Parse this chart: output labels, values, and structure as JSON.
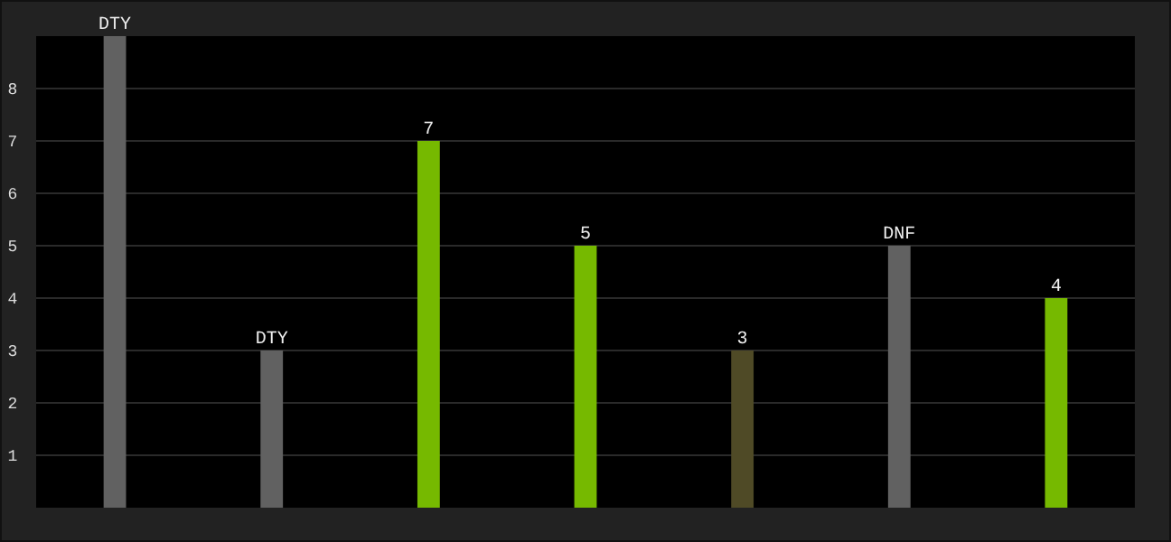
{
  "chart_data": {
    "type": "bar",
    "categories": [
      null,
      null,
      null,
      null,
      null,
      null,
      null
    ],
    "values": [
      9,
      3,
      7,
      5,
      3,
      5,
      4
    ],
    "colors": [
      "#616161",
      "#616161",
      "#76b900",
      "#76b900",
      "#4f4a26",
      "#616161",
      "#76b900"
    ],
    "value_labels": [
      "DTY",
      "DTY",
      "7",
      "5",
      "3",
      "DNF",
      "4"
    ],
    "ylim": [
      0,
      9
    ],
    "yticks": [
      1,
      2,
      3,
      4,
      5,
      6,
      7,
      8
    ],
    "grid": "y",
    "tick_labels": "y"
  }
}
